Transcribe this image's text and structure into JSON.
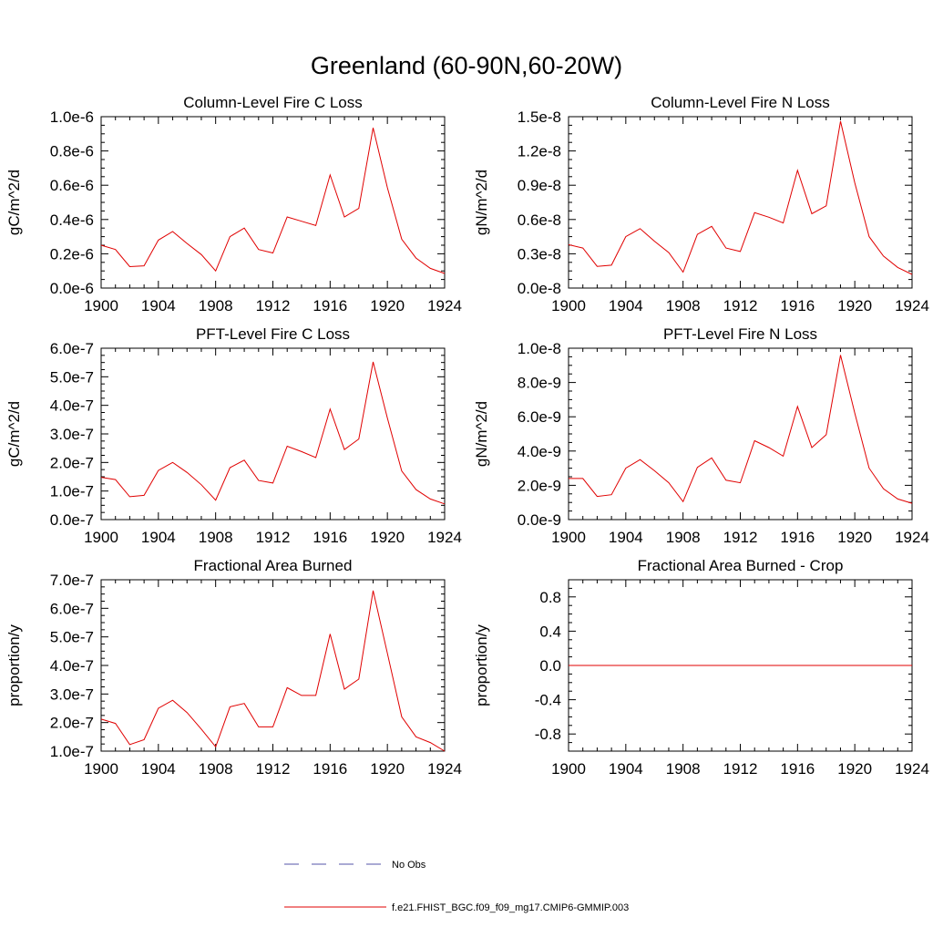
{
  "page_title": "Greenland (60-90N,60-20W)",
  "legend": {
    "entries": [
      {
        "label": "No Obs",
        "color": "#5555aa",
        "dash": true
      },
      {
        "label": "f.e21.FHIST_BGC.f09_f09_mg17.CMIP6-GMMIP.003",
        "color": "#e00000",
        "dash": false
      }
    ]
  },
  "colors": {
    "series": "#e00000",
    "axis": "#000000"
  },
  "chart_data": [
    {
      "type": "line",
      "title": "Column-Level Fire C Loss",
      "ylabel": "gC/m^2/d",
      "xlabel": "",
      "xlim": [
        1900,
        1924
      ],
      "xticks": [
        "1900",
        "1904",
        "1908",
        "1912",
        "1916",
        "1920",
        "1924"
      ],
      "ylim": [
        0,
        1e-06
      ],
      "yticks": [
        "0.0e-6",
        "0.2e-6",
        "0.4e-6",
        "0.6e-6",
        "0.8e-6",
        "1.0e-6"
      ],
      "x": [
        1900,
        1901,
        1902,
        1903,
        1904,
        1905,
        1906,
        1907,
        1908,
        1909,
        1910,
        1911,
        1912,
        1913,
        1914,
        1915,
        1916,
        1917,
        1918,
        1919,
        1920,
        1921,
        1922,
        1923,
        1924
      ],
      "series": [
        {
          "name": "f.e21.FHIST_BGC.f09_f09_mg17.CMIP6-GMMIP.003",
          "values": [
            2.5e-07,
            2.25e-07,
            1.25e-07,
            1.3e-07,
            2.8e-07,
            3.3e-07,
            2.6e-07,
            1.95e-07,
            1e-07,
            3e-07,
            3.5e-07,
            2.25e-07,
            2.05e-07,
            4.15e-07,
            3.9e-07,
            3.65e-07,
            6.6e-07,
            4.15e-07,
            4.65e-07,
            9.35e-07,
            5.85e-07,
            2.85e-07,
            1.75e-07,
            1.15e-07,
            8.5e-08
          ]
        }
      ]
    },
    {
      "type": "line",
      "title": "Column-Level Fire N Loss",
      "ylabel": "gN/m^2/d",
      "xlabel": "",
      "xlim": [
        1900,
        1924
      ],
      "xticks": [
        "1900",
        "1904",
        "1908",
        "1912",
        "1916",
        "1920",
        "1924"
      ],
      "ylim": [
        0,
        1.5e-08
      ],
      "yticks": [
        "0.0e-8",
        "0.3e-8",
        "0.6e-8",
        "0.9e-8",
        "1.2e-8",
        "1.5e-8"
      ],
      "x": [
        1900,
        1901,
        1902,
        1903,
        1904,
        1905,
        1906,
        1907,
        1908,
        1909,
        1910,
        1911,
        1912,
        1913,
        1914,
        1915,
        1916,
        1917,
        1918,
        1919,
        1920,
        1921,
        1922,
        1923,
        1924
      ],
      "series": [
        {
          "name": "f.e21.FHIST_BGC.f09_f09_mg17.CMIP6-GMMIP.003",
          "values": [
            3.8e-09,
            3.5e-09,
            1.9e-09,
            2e-09,
            4.5e-09,
            5.2e-09,
            4.1e-09,
            3.1e-09,
            1.4e-09,
            4.7e-09,
            5.4e-09,
            3.5e-09,
            3.2e-09,
            6.6e-09,
            6.2e-09,
            5.7e-09,
            1.03e-08,
            6.5e-09,
            7.2e-09,
            1.46e-08,
            9.2e-09,
            4.5e-09,
            2.8e-09,
            1.8e-09,
            1.2e-09
          ]
        }
      ]
    },
    {
      "type": "line",
      "title": "PFT-Level Fire C Loss",
      "ylabel": "gC/m^2/d",
      "xlabel": "",
      "xlim": [
        1900,
        1924
      ],
      "xticks": [
        "1900",
        "1904",
        "1908",
        "1912",
        "1916",
        "1920",
        "1924"
      ],
      "ylim": [
        0,
        6e-07
      ],
      "yticks": [
        "0.0e-7",
        "1.0e-7",
        "2.0e-7",
        "3.0e-7",
        "4.0e-7",
        "5.0e-7",
        "6.0e-7"
      ],
      "x": [
        1900,
        1901,
        1902,
        1903,
        1904,
        1905,
        1906,
        1907,
        1908,
        1909,
        1910,
        1911,
        1912,
        1913,
        1914,
        1915,
        1916,
        1917,
        1918,
        1919,
        1920,
        1921,
        1922,
        1923,
        1924
      ],
      "series": [
        {
          "name": "f.e21.FHIST_BGC.f09_f09_mg17.CMIP6-GMMIP.003",
          "values": [
            1.48e-07,
            1.4e-07,
            8e-08,
            8.5e-08,
            1.72e-07,
            2e-07,
            1.65e-07,
            1.22e-07,
            6.8e-08,
            1.82e-07,
            2.08e-07,
            1.37e-07,
            1.28e-07,
            2.57e-07,
            2.38e-07,
            2.17e-07,
            3.87e-07,
            2.45e-07,
            2.82e-07,
            5.52e-07,
            3.55e-07,
            1.7e-07,
            1.05e-07,
            7.2e-08,
            5.5e-08
          ]
        }
      ]
    },
    {
      "type": "line",
      "title": "PFT-Level Fire N Loss",
      "ylabel": "gN/m^2/d",
      "xlabel": "",
      "xlim": [
        1900,
        1924
      ],
      "xticks": [
        "1900",
        "1904",
        "1908",
        "1912",
        "1916",
        "1920",
        "1924"
      ],
      "ylim": [
        0,
        1e-08
      ],
      "yticks": [
        "0.0e-9",
        "2.0e-9",
        "4.0e-9",
        "6.0e-9",
        "8.0e-9",
        "1.0e-8"
      ],
      "x": [
        1900,
        1901,
        1902,
        1903,
        1904,
        1905,
        1906,
        1907,
        1908,
        1909,
        1910,
        1911,
        1912,
        1913,
        1914,
        1915,
        1916,
        1917,
        1918,
        1919,
        1920,
        1921,
        1922,
        1923,
        1924
      ],
      "series": [
        {
          "name": "f.e21.FHIST_BGC.f09_f09_mg17.CMIP6-GMMIP.003",
          "values": [
            2.4e-09,
            2.4e-09,
            1.35e-09,
            1.45e-09,
            3e-09,
            3.5e-09,
            2.85e-09,
            2.15e-09,
            1.05e-09,
            3.05e-09,
            3.6e-09,
            2.3e-09,
            2.15e-09,
            4.6e-09,
            4.2e-09,
            3.7e-09,
            6.6e-09,
            4.2e-09,
            4.95e-09,
            9.6e-09,
            6.2e-09,
            3e-09,
            1.8e-09,
            1.2e-09,
            9.5e-10
          ]
        }
      ]
    },
    {
      "type": "line",
      "title": "Fractional Area Burned",
      "ylabel": "proportion/y",
      "xlabel": "",
      "xlim": [
        1900,
        1924
      ],
      "xticks": [
        "1900",
        "1904",
        "1908",
        "1912",
        "1916",
        "1920",
        "1924"
      ],
      "ylim": [
        1e-07,
        7e-07
      ],
      "yticks": [
        "1.0e-7",
        "2.0e-7",
        "3.0e-7",
        "4.0e-7",
        "5.0e-7",
        "6.0e-7",
        "7.0e-7"
      ],
      "x": [
        1900,
        1901,
        1902,
        1903,
        1904,
        1905,
        1906,
        1907,
        1908,
        1909,
        1910,
        1911,
        1912,
        1913,
        1914,
        1915,
        1916,
        1917,
        1918,
        1919,
        1920,
        1921,
        1922,
        1923,
        1924
      ],
      "series": [
        {
          "name": "f.e21.FHIST_BGC.f09_f09_mg17.CMIP6-GMMIP.003",
          "values": [
            2.12e-07,
            1.97e-07,
            1.23e-07,
            1.4e-07,
            2.5e-07,
            2.78e-07,
            2.35e-07,
            1.77e-07,
            1.15e-07,
            2.55e-07,
            2.67e-07,
            1.85e-07,
            1.85e-07,
            3.22e-07,
            2.95e-07,
            2.95e-07,
            5.1e-07,
            3.17e-07,
            3.52e-07,
            6.62e-07,
            4.42e-07,
            2.2e-07,
            1.5e-07,
            1.3e-07,
            1e-07
          ]
        }
      ]
    },
    {
      "type": "line",
      "title": "Fractional Area Burned - Crop",
      "ylabel": "proportion/y",
      "xlabel": "",
      "xlim": [
        1900,
        1924
      ],
      "xticks": [
        "1900",
        "1904",
        "1908",
        "1912",
        "1916",
        "1920",
        "1924"
      ],
      "ylim": [
        -1.0,
        1.0
      ],
      "yticks": [
        "-0.8",
        "-0.4",
        "0.0",
        "0.4",
        "0.8"
      ],
      "ytick_values": [
        -0.8,
        -0.4,
        0.0,
        0.4,
        0.8
      ],
      "x": [
        1900,
        1901,
        1902,
        1903,
        1904,
        1905,
        1906,
        1907,
        1908,
        1909,
        1910,
        1911,
        1912,
        1913,
        1914,
        1915,
        1916,
        1917,
        1918,
        1919,
        1920,
        1921,
        1922,
        1923,
        1924
      ],
      "series": [
        {
          "name": "f.e21.FHIST_BGC.f09_f09_mg17.CMIP6-GMMIP.003",
          "values": [
            0,
            0,
            0,
            0,
            0,
            0,
            0,
            0,
            0,
            0,
            0,
            0,
            0,
            0,
            0,
            0,
            0,
            0,
            0,
            0,
            0,
            0,
            0,
            0,
            0
          ]
        }
      ]
    }
  ]
}
